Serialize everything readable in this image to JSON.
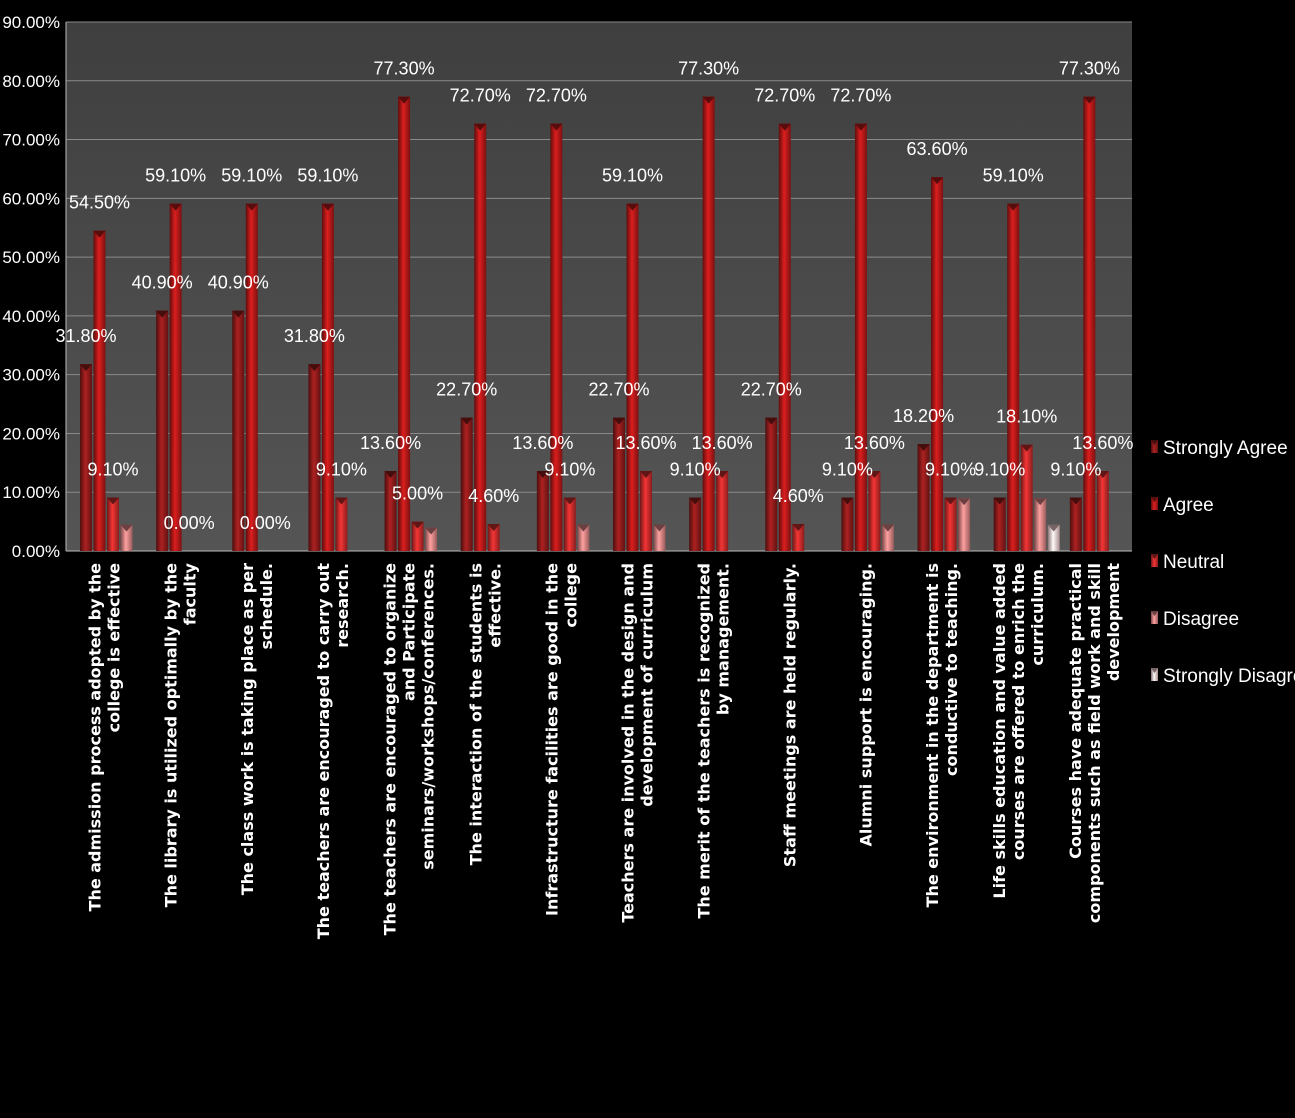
{
  "chart_data": {
    "type": "bar",
    "ylim": [
      0,
      90
    ],
    "y_ticks": [
      "0.00%",
      "10.00%",
      "20.00%",
      "30.00%",
      "40.00%",
      "50.00%",
      "60.00%",
      "70.00%",
      "80.00%",
      "90.00%"
    ],
    "grid": true,
    "legend_position": "right",
    "plot_background": "#4a4a4a",
    "categories": [
      [
        "The admission process adopted by the",
        "college is effective"
      ],
      [
        "The library is utilized optimally by the",
        "faculty"
      ],
      [
        "The class work is taking place as per",
        "schedule."
      ],
      [
        "The teachers are encouraged to carry out",
        "research."
      ],
      [
        "The teachers are encouraged to organize",
        "and Participate",
        "seminars/workshops/conferences."
      ],
      [
        "The interaction of the students is",
        "effective."
      ],
      [
        "Infrastructure facilities are good in the",
        "college"
      ],
      [
        "Teachers are involved in the design and",
        "development of curriculum"
      ],
      [
        "The merit of the teachers is recognized",
        "by management."
      ],
      [
        "Staff meetings are held regularly."
      ],
      [
        "Alumni support is encouraging."
      ],
      [
        "The environment in the department is",
        "conductive to teaching."
      ],
      [
        "Life skills education and value added",
        "courses are offered to enrich the",
        "curriculum."
      ],
      [
        "Courses have adequate practical",
        "components such as field work and skill",
        "development"
      ]
    ],
    "series": [
      {
        "name": "Strongly Agree",
        "color": "#8b1a1a",
        "values": [
          31.8,
          40.9,
          40.9,
          31.8,
          13.6,
          22.7,
          13.6,
          22.7,
          9.1,
          22.7,
          9.1,
          18.2,
          9.1,
          9.1
        ]
      },
      {
        "name": "Agree",
        "color": "#b01818",
        "values": [
          54.5,
          59.1,
          59.1,
          59.1,
          77.3,
          72.7,
          72.7,
          59.1,
          77.3,
          72.7,
          72.7,
          63.6,
          59.1,
          77.3
        ]
      },
      {
        "name": "Neutral",
        "color": "#c42a2a",
        "values": [
          9.1,
          0,
          0,
          9.1,
          5.0,
          4.6,
          9.1,
          13.6,
          13.6,
          4.6,
          13.6,
          9.1,
          18.1,
          13.6
        ]
      },
      {
        "name": "Disagree",
        "color": "#d88080",
        "values": [
          4.5,
          null,
          null,
          null,
          4.0,
          null,
          4.5,
          4.5,
          null,
          null,
          4.5,
          9.0,
          9.0,
          null
        ]
      },
      {
        "name": "Strongly Disagree",
        "color": "#f0c8c8",
        "values": [
          null,
          null,
          null,
          null,
          null,
          null,
          null,
          null,
          null,
          null,
          null,
          null,
          4.5,
          null
        ]
      }
    ],
    "data_labels": [
      {
        "cat": 0,
        "series": 0,
        "text": "31.80%"
      },
      {
        "cat": 0,
        "series": 1,
        "text": "54.50%"
      },
      {
        "cat": 0,
        "series": 2,
        "text": "9.10%"
      },
      {
        "cat": 1,
        "series": 0,
        "text": "40.90%"
      },
      {
        "cat": 1,
        "series": 1,
        "text": "59.10%"
      },
      {
        "cat": 1,
        "series": 2,
        "text": "0.00%"
      },
      {
        "cat": 2,
        "series": 0,
        "text": "40.90%"
      },
      {
        "cat": 2,
        "series": 1,
        "text": "59.10%"
      },
      {
        "cat": 2,
        "series": 2,
        "text": "0.00%"
      },
      {
        "cat": 3,
        "series": 0,
        "text": "31.80%"
      },
      {
        "cat": 3,
        "series": 1,
        "text": "59.10%"
      },
      {
        "cat": 3,
        "series": 2,
        "text": "9.10%"
      },
      {
        "cat": 4,
        "series": 0,
        "text": "13.60%"
      },
      {
        "cat": 4,
        "series": 1,
        "text": "77.30%"
      },
      {
        "cat": 4,
        "series": 2,
        "text": "5.00%"
      },
      {
        "cat": 5,
        "series": 0,
        "text": "22.70%"
      },
      {
        "cat": 5,
        "series": 1,
        "text": "72.70%"
      },
      {
        "cat": 5,
        "series": 2,
        "text": "4.60%"
      },
      {
        "cat": 6,
        "series": 0,
        "text": "13.60%"
      },
      {
        "cat": 6,
        "series": 1,
        "text": "72.70%"
      },
      {
        "cat": 6,
        "series": 2,
        "text": "9.10%"
      },
      {
        "cat": 7,
        "series": 0,
        "text": "22.70%"
      },
      {
        "cat": 7,
        "series": 1,
        "text": "59.10%"
      },
      {
        "cat": 7,
        "series": 2,
        "text": "13.60%"
      },
      {
        "cat": 8,
        "series": 0,
        "text": "9.10%"
      },
      {
        "cat": 8,
        "series": 1,
        "text": "77.30%"
      },
      {
        "cat": 8,
        "series": 2,
        "text": "13.60%"
      },
      {
        "cat": 9,
        "series": 0,
        "text": "22.70%"
      },
      {
        "cat": 9,
        "series": 1,
        "text": "72.70%"
      },
      {
        "cat": 9,
        "series": 2,
        "text": "4.60%"
      },
      {
        "cat": 10,
        "series": 0,
        "text": "9.10%"
      },
      {
        "cat": 10,
        "series": 1,
        "text": "72.70%"
      },
      {
        "cat": 10,
        "series": 2,
        "text": "13.60%"
      },
      {
        "cat": 11,
        "series": 0,
        "text": "18.20%"
      },
      {
        "cat": 11,
        "series": 1,
        "text": "63.60%"
      },
      {
        "cat": 11,
        "series": 2,
        "text": "9.10%"
      },
      {
        "cat": 12,
        "series": 0,
        "text": "9.10%"
      },
      {
        "cat": 12,
        "series": 1,
        "text": "59.10%"
      },
      {
        "cat": 12,
        "series": 2,
        "text": "18.10%"
      },
      {
        "cat": 13,
        "series": 0,
        "text": "9.10%"
      },
      {
        "cat": 13,
        "series": 1,
        "text": "77.30%"
      },
      {
        "cat": 13,
        "series": 2,
        "text": "13.60%"
      }
    ]
  }
}
